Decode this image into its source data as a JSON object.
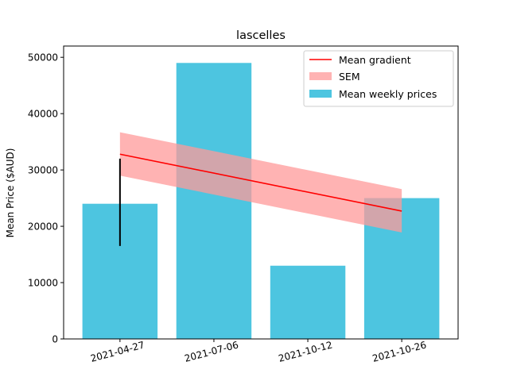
{
  "chart_data": {
    "type": "bar",
    "title": "lascelles",
    "xlabel": "",
    "ylabel": "Mean Price ($AUD)",
    "ylim": [
      0,
      52000
    ],
    "yticks": [
      0,
      10000,
      20000,
      30000,
      40000,
      50000
    ],
    "categories": [
      "2021-04-27",
      "2021-07-06",
      "2021-10-12",
      "2021-10-26"
    ],
    "series": [
      {
        "name": "Mean weekly prices",
        "values": [
          24000,
          49000,
          13000,
          25000
        ],
        "color": "#4dc5e0"
      }
    ],
    "error_bars": [
      {
        "category": "2021-04-27",
        "low": 16500,
        "high": 32000
      }
    ],
    "trend": {
      "name": "Mean gradient",
      "color": "#ff0000",
      "start": {
        "category": "2021-04-27",
        "value": 32800
      },
      "end": {
        "category": "2021-10-26",
        "value": 22700
      }
    },
    "band": {
      "name": "SEM",
      "color": "#ff9999",
      "start": {
        "category": "2021-04-27",
        "low": 29000,
        "high": 36700
      },
      "end": {
        "category": "2021-10-26",
        "low": 18900,
        "high": 26600
      }
    },
    "legend": {
      "position": "upper-right",
      "entries": [
        "Mean gradient",
        "SEM",
        "Mean weekly prices"
      ]
    },
    "grid": false
  }
}
